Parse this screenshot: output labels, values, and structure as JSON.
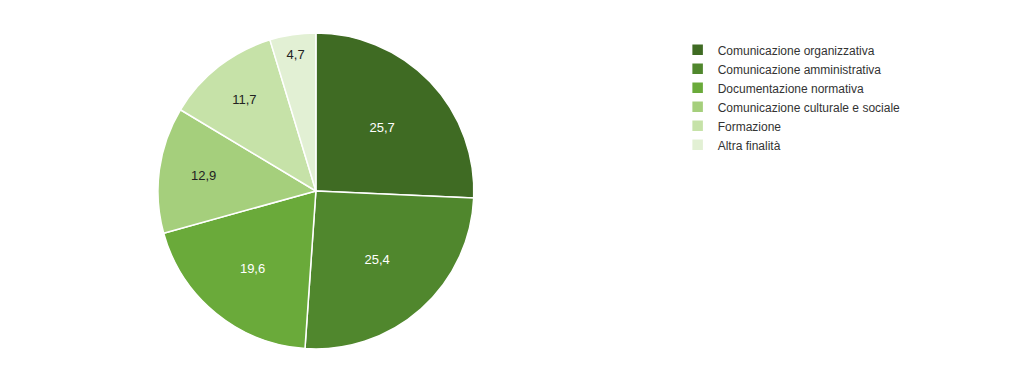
{
  "chart_data": {
    "type": "pie",
    "categories": [
      "Comunicazione organizzativa",
      "Comunicazione amministrativa",
      "Documentazione normativa",
      "Comunicazione culturale e sociale",
      "Formazione",
      "Altra finalità"
    ],
    "values": [
      25.7,
      25.4,
      19.6,
      12.9,
      11.7,
      4.7
    ],
    "value_labels": [
      "25,7",
      "25,4",
      "19,6",
      "12,9",
      "11,7",
      "4,7"
    ],
    "colors": [
      "#3f6b23",
      "#50872d",
      "#6aaa3a",
      "#a5cf7c",
      "#c6e2a8",
      "#e2f0d4"
    ],
    "data_labels": true,
    "legend": "right"
  }
}
